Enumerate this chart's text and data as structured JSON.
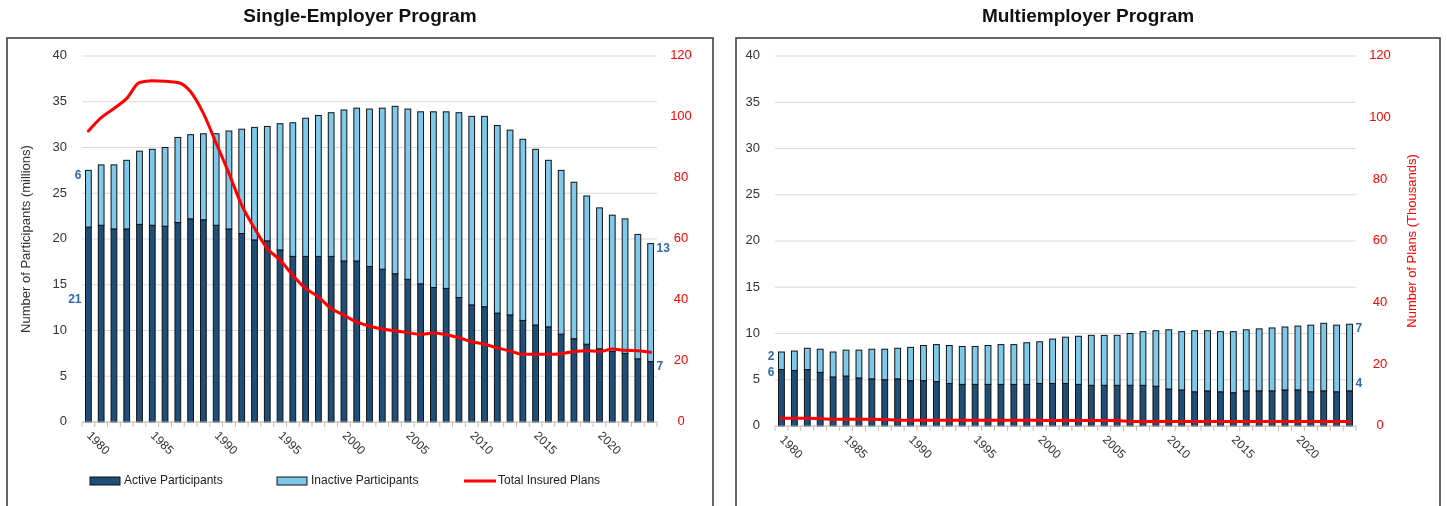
{
  "chart_data": [
    {
      "type": "bar",
      "title": "Single-Employer Program",
      "ylabel": "Number of Participants (millions)",
      "stacked": true,
      "categories": [
        "1980",
        null,
        null,
        null,
        null,
        "1985",
        null,
        null,
        null,
        null,
        "1990",
        null,
        null,
        null,
        null,
        "1995",
        null,
        null,
        null,
        null,
        "2000",
        null,
        null,
        null,
        null,
        "2005",
        null,
        null,
        null,
        null,
        "2010",
        null,
        null,
        null,
        null,
        "2015",
        null,
        null,
        null,
        null,
        "2020",
        null,
        null,
        null,
        null
      ],
      "series": [
        {
          "name": "Active Participants",
          "color": "#1f4e79",
          "values": [
            21.3,
            21.5,
            21.1,
            21.1,
            21.6,
            21.5,
            21.4,
            21.8,
            22.2,
            22.1,
            21.5,
            21.1,
            20.6,
            19.9,
            19.8,
            18.8,
            18.1,
            18.1,
            18.1,
            18.1,
            17.6,
            17.6,
            17.0,
            16.7,
            16.2,
            15.6,
            15.1,
            14.7,
            14.6,
            13.6,
            12.8,
            12.6,
            11.9,
            11.7,
            11.1,
            10.6,
            10.4,
            9.6,
            9.1,
            8.5,
            8.0,
            7.7,
            7.5,
            6.9,
            6.6
          ],
          "value_labels": [
            "21",
            null,
            null,
            null,
            null,
            null,
            null,
            null,
            null,
            null,
            null,
            null,
            null,
            null,
            null,
            null,
            null,
            null,
            null,
            null,
            null,
            null,
            null,
            null,
            null,
            null,
            null,
            null,
            null,
            null,
            null,
            null,
            null,
            null,
            null,
            null,
            null,
            null,
            null,
            null,
            null,
            null,
            null,
            null,
            "7"
          ]
        },
        {
          "name": "Inactive Participants",
          "color": "#7ec8e9",
          "values": [
            6.2,
            6.6,
            7.0,
            7.5,
            8.0,
            8.3,
            8.6,
            9.3,
            9.2,
            9.4,
            10.0,
            10.7,
            11.4,
            12.3,
            12.5,
            13.8,
            14.6,
            15.1,
            15.4,
            15.7,
            16.5,
            16.7,
            17.2,
            17.6,
            18.3,
            18.6,
            18.8,
            19.2,
            19.3,
            20.2,
            20.6,
            20.8,
            20.5,
            20.2,
            19.8,
            19.2,
            18.2,
            17.9,
            17.1,
            16.2,
            15.4,
            14.9,
            14.7,
            13.6,
            12.9
          ],
          "value_labels": [
            "6",
            null,
            null,
            null,
            null,
            null,
            null,
            null,
            null,
            null,
            null,
            null,
            null,
            null,
            null,
            null,
            null,
            null,
            null,
            null,
            null,
            null,
            null,
            null,
            null,
            null,
            null,
            null,
            null,
            null,
            null,
            null,
            null,
            null,
            null,
            null,
            null,
            null,
            null,
            null,
            null,
            null,
            null,
            null,
            "13"
          ]
        },
        {
          "name": "Total Insured Plans",
          "type": "line",
          "axis": "y2",
          "color": "#ff0000",
          "values": [
            95.4,
            99.8,
            102.8,
            106.1,
            111.3,
            111.9,
            111.7,
            111.3,
            108.3,
            101.2,
            91.4,
            81.5,
            71.1,
            63.5,
            56.9,
            53.1,
            48.1,
            43.8,
            41.0,
            37.2,
            35.0,
            32.8,
            31.4,
            30.5,
            29.9,
            29.3,
            28.7,
            29.2,
            28.6,
            27.6,
            26.3,
            25.5,
            24.3,
            23.3,
            22.2,
            22.2,
            22.2,
            22.4,
            23.1,
            23.4,
            23.1,
            23.9,
            23.5,
            23.4,
            22.9
          ]
        }
      ],
      "ylim": [
        0,
        40
      ],
      "yticks": [
        0,
        5,
        10,
        15,
        20,
        25,
        30,
        35,
        40
      ],
      "y2lim": [
        0,
        120
      ],
      "y2ticks": [
        0,
        20,
        40,
        60,
        80,
        100,
        120
      ],
      "grid": "y",
      "legend": "bottom"
    },
    {
      "type": "bar",
      "title": "Multiemployer Program",
      "y2label": "Number of Plans (Thousands)",
      "stacked": true,
      "categories": [
        "1980",
        null,
        null,
        null,
        null,
        "1985",
        null,
        null,
        null,
        null,
        "1990",
        null,
        null,
        null,
        null,
        "1995",
        null,
        null,
        null,
        null,
        "2000",
        null,
        null,
        null,
        null,
        "2005",
        null,
        null,
        null,
        null,
        "2010",
        null,
        null,
        null,
        null,
        "2015",
        null,
        null,
        null,
        null,
        "2020",
        null,
        null,
        null,
        null
      ],
      "series": [
        {
          "color": "#1f4e79",
          "values": [
            6.1,
            6.0,
            6.1,
            5.8,
            5.3,
            5.4,
            5.2,
            5.1,
            5.0,
            5.1,
            4.9,
            4.9,
            4.8,
            4.6,
            4.5,
            4.5,
            4.5,
            4.5,
            4.5,
            4.5,
            4.6,
            4.6,
            4.6,
            4.5,
            4.4,
            4.4,
            4.4,
            4.4,
            4.4,
            4.3,
            4.0,
            3.9,
            3.7,
            3.8,
            3.7,
            3.6,
            3.8,
            3.8,
            3.8,
            3.9,
            3.9,
            3.7,
            3.8,
            3.7,
            3.8
          ],
          "value_labels": [
            "6",
            null,
            null,
            null,
            null,
            null,
            null,
            null,
            null,
            null,
            null,
            null,
            null,
            null,
            null,
            null,
            null,
            null,
            null,
            null,
            null,
            null,
            null,
            null,
            null,
            null,
            null,
            null,
            null,
            null,
            null,
            null,
            null,
            null,
            null,
            null,
            null,
            null,
            null,
            null,
            null,
            null,
            null,
            null,
            "4"
          ]
        },
        {
          "color": "#7ec8e9",
          "values": [
            1.9,
            2.1,
            2.3,
            2.5,
            2.7,
            2.8,
            3.0,
            3.2,
            3.3,
            3.3,
            3.6,
            3.8,
            4.0,
            4.1,
            4.1,
            4.1,
            4.2,
            4.3,
            4.3,
            4.5,
            4.5,
            4.8,
            5.0,
            5.2,
            5.4,
            5.4,
            5.4,
            5.6,
            5.8,
            6.0,
            6.4,
            6.3,
            6.6,
            6.5,
            6.5,
            6.6,
            6.6,
            6.7,
            6.8,
            6.8,
            6.9,
            7.2,
            7.3,
            7.2,
            7.2
          ],
          "value_labels": [
            "2",
            null,
            null,
            null,
            null,
            null,
            null,
            null,
            null,
            null,
            null,
            null,
            null,
            null,
            null,
            null,
            null,
            null,
            null,
            null,
            null,
            null,
            null,
            null,
            null,
            null,
            null,
            null,
            null,
            null,
            null,
            null,
            null,
            null,
            null,
            null,
            null,
            null,
            null,
            null,
            null,
            null,
            null,
            null,
            "7"
          ]
        },
        {
          "type": "line",
          "axis": "y2",
          "color": "#ff0000",
          "values": [
            2.5,
            2.5,
            2.5,
            2.4,
            2.2,
            2.2,
            2.2,
            2.2,
            2.1,
            1.9,
            1.9,
            1.9,
            1.9,
            1.9,
            1.9,
            1.9,
            1.9,
            1.9,
            1.9,
            1.9,
            1.8,
            1.8,
            1.8,
            1.8,
            1.8,
            1.8,
            1.8,
            1.5,
            1.5,
            1.5,
            1.5,
            1.5,
            1.5,
            1.5,
            1.5,
            1.5,
            1.5,
            1.5,
            1.5,
            1.5,
            1.5,
            1.5,
            1.5,
            1.5,
            1.5
          ]
        }
      ],
      "ylim": [
        0,
        40
      ],
      "yticks": [
        0,
        5,
        10,
        15,
        20,
        25,
        30,
        35,
        40
      ],
      "y2lim": [
        0,
        120
      ],
      "y2ticks": [
        0,
        20,
        40,
        60,
        80,
        100,
        120
      ],
      "grid": "y"
    }
  ]
}
